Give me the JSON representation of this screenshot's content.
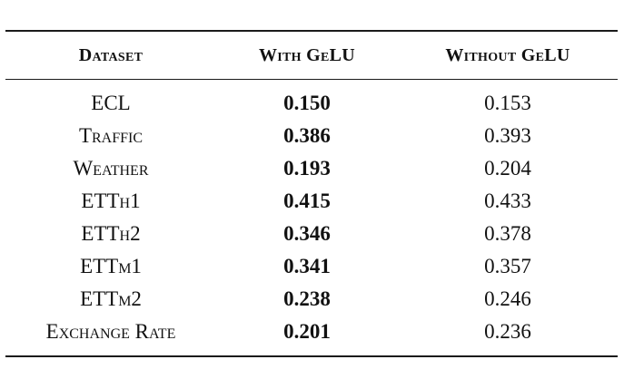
{
  "table": {
    "headers": [
      "Dataset",
      "With GeLU",
      "Without GeLU"
    ],
    "rows": [
      {
        "dataset": "ECL",
        "with_gelu": "0.150",
        "without_gelu": "0.153"
      },
      {
        "dataset": "Traffic",
        "with_gelu": "0.386",
        "without_gelu": "0.393"
      },
      {
        "dataset": "Weather",
        "with_gelu": "0.193",
        "without_gelu": "0.204"
      },
      {
        "dataset": "ETTh1",
        "with_gelu": "0.415",
        "without_gelu": "0.433"
      },
      {
        "dataset": "ETTh2",
        "with_gelu": "0.346",
        "without_gelu": "0.378"
      },
      {
        "dataset": "ETTm1",
        "with_gelu": "0.341",
        "without_gelu": "0.357"
      },
      {
        "dataset": "ETTm2",
        "with_gelu": "0.238",
        "without_gelu": "0.246"
      },
      {
        "dataset": "Exchange Rate",
        "with_gelu": "0.201",
        "without_gelu": "0.236"
      }
    ]
  }
}
